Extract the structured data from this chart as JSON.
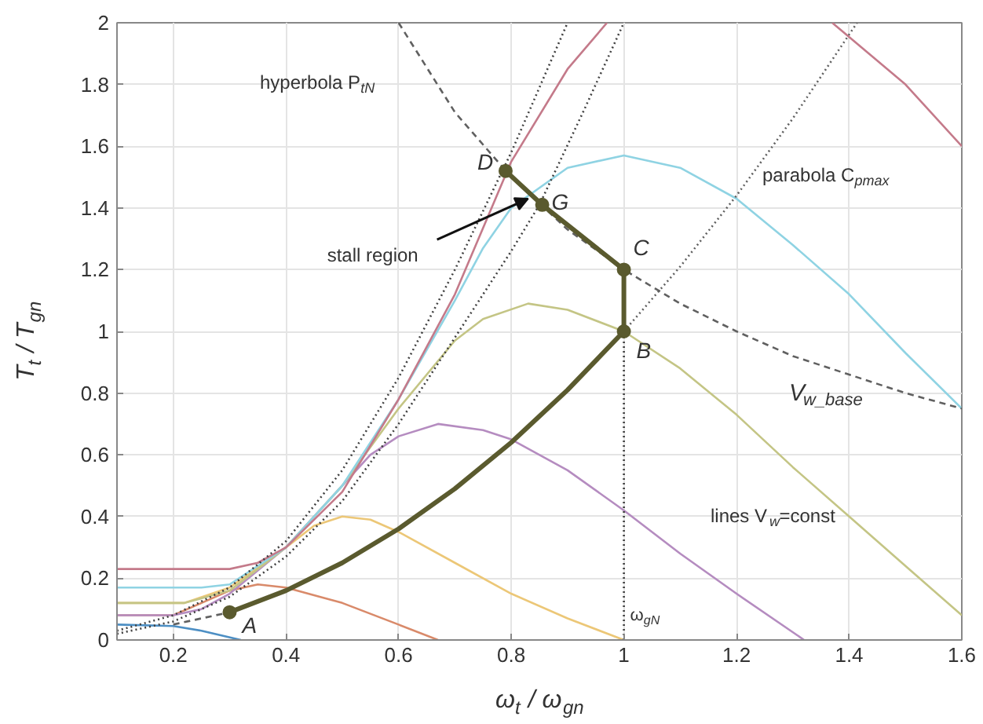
{
  "chart_data": {
    "type": "line",
    "xlabel": "ω$_{t}$ / ω$_{gn}$",
    "ylabel": "T$_{t}$ / T$_{gn}$",
    "xlim": [
      0.1,
      1.6
    ],
    "xticks": [
      0.2,
      0.4,
      0.6,
      0.8,
      1,
      1.2,
      1.4,
      1.6
    ],
    "ylim": [
      0,
      2
    ],
    "yticks": [
      0,
      0.2,
      0.4,
      0.6,
      0.8,
      1,
      1.2,
      1.4,
      1.6,
      1.8,
      2
    ],
    "grid": true,
    "line_style": "solid",
    "series": [
      {
        "color": "#4d8fc4",
        "x": [
          0.1,
          0.2,
          0.25,
          0.32
        ],
        "values": [
          0.05,
          0.045,
          0.03,
          0
        ]
      },
      {
        "color": "#d98a6a",
        "x": [
          0.1,
          0.2,
          0.25,
          0.3,
          0.35,
          0.4,
          0.5,
          0.6,
          0.67
        ],
        "values": [
          0.08,
          0.08,
          0.12,
          0.16,
          0.18,
          0.17,
          0.12,
          0.05,
          0
        ]
      },
      {
        "color": "#ecc777",
        "x": [
          0.1,
          0.22,
          0.3,
          0.4,
          0.45,
          0.5,
          0.55,
          0.6,
          0.7,
          0.8,
          0.9,
          1.0
        ],
        "values": [
          0.12,
          0.12,
          0.17,
          0.3,
          0.37,
          0.4,
          0.39,
          0.35,
          0.25,
          0.15,
          0.07,
          0
        ]
      },
      {
        "color": "#b58cc0",
        "x": [
          0.1,
          0.2,
          0.25,
          0.3,
          0.4,
          0.5,
          0.55,
          0.6,
          0.67,
          0.75,
          0.8,
          0.9,
          1.0,
          1.1,
          1.2,
          1.32
        ],
        "values": [
          0.08,
          0.08,
          0.1,
          0.15,
          0.3,
          0.5,
          0.6,
          0.66,
          0.7,
          0.68,
          0.65,
          0.55,
          0.42,
          0.28,
          0.15,
          0
        ]
      },
      {
        "color": "#c4c585",
        "x": [
          0.1,
          0.22,
          0.3,
          0.4,
          0.5,
          0.6,
          0.7,
          0.75,
          0.83,
          0.9,
          1.0,
          1.1,
          1.2,
          1.3,
          1.4,
          1.5,
          1.6
        ],
        "values": [
          0.12,
          0.12,
          0.16,
          0.3,
          0.5,
          0.75,
          0.97,
          1.04,
          1.09,
          1.07,
          1.0,
          0.88,
          0.73,
          0.56,
          0.4,
          0.24,
          0.08
        ]
      },
      {
        "color": "#8fd3e3",
        "x": [
          0.1,
          0.25,
          0.3,
          0.4,
          0.5,
          0.6,
          0.7,
          0.75,
          0.8,
          0.9,
          1.0,
          1.1,
          1.2,
          1.3,
          1.4,
          1.5,
          1.6
        ],
        "values": [
          0.17,
          0.17,
          0.18,
          0.3,
          0.5,
          0.78,
          1.1,
          1.27,
          1.4,
          1.53,
          1.57,
          1.53,
          1.43,
          1.28,
          1.12,
          0.93,
          0.75
        ]
      },
      {
        "color": "#c47a8a",
        "x": [
          0.1,
          0.3,
          0.35,
          0.4,
          0.5,
          0.6,
          0.7,
          0.8,
          0.9,
          0.97,
          1.2,
          1.37,
          1.5,
          1.6
        ],
        "values": [
          0.23,
          0.23,
          0.25,
          0.3,
          0.48,
          0.78,
          1.12,
          1.55,
          1.85,
          2.0,
          null,
          2.0,
          1.8,
          1.6
        ]
      },
      {
        "color": "#404040",
        "line_style": "dotted",
        "x": [
          0.1,
          0.2,
          0.3,
          0.4,
          0.5,
          0.6,
          0.7,
          0.8,
          0.9
        ],
        "values": [
          0.03,
          0.08,
          0.17,
          0.32,
          0.55,
          0.85,
          1.2,
          1.58,
          2.0
        ]
      },
      {
        "color": "#404040",
        "line_style": "dotted",
        "x": [
          0.1,
          0.2,
          0.3,
          0.4,
          0.5,
          0.6,
          0.7,
          0.8,
          0.85,
          0.93,
          1.0
        ],
        "values": [
          0.02,
          0.06,
          0.14,
          0.27,
          0.45,
          0.7,
          0.98,
          1.26,
          1.41,
          1.72,
          2.0
        ]
      },
      {
        "color": "#606060",
        "line_style": "dashed",
        "x": [
          0.6,
          0.7,
          0.8,
          0.9,
          1.0,
          1.1,
          1.2,
          1.3,
          1.4,
          1.5,
          1.6
        ],
        "values": [
          2.0,
          1.71,
          1.5,
          1.33,
          1.2,
          1.09,
          1.0,
          0.92,
          0.86,
          0.8,
          0.75
        ]
      },
      {
        "color": "#606060",
        "line_style": "dotted",
        "x": [
          1.0,
          1.1,
          1.2,
          1.3,
          1.414
        ],
        "values": [
          1.0,
          1.21,
          1.44,
          1.69,
          2.0
        ]
      },
      {
        "color": "#606060",
        "line_style": "dashed",
        "x": [
          0.2,
          0.3
        ],
        "values": [
          0.05,
          0.09
        ]
      },
      {
        "color": "#404040",
        "line_style": "dotted",
        "x": [
          1.0,
          1.0
        ],
        "values": [
          0,
          1.0
        ]
      },
      {
        "color": "#5a5a2e",
        "x": [
          0.3,
          0.4,
          0.5,
          0.6,
          0.7,
          0.8,
          0.9,
          1.0,
          1.0,
          0.855,
          0.79
        ],
        "values": [
          0.09,
          0.16,
          0.25,
          0.36,
          0.49,
          0.64,
          0.81,
          1.0,
          1.2,
          1.41,
          1.52
        ]
      },
      {
        "type": "scatter",
        "marker": "circle",
        "color": "#5a5a2e",
        "x": [
          0.3,
          1.0,
          1.0,
          0.855,
          0.79
        ],
        "values": [
          0.09,
          1.0,
          1.2,
          1.41,
          1.52
        ]
      }
    ],
    "annotations": [
      {
        "text": "A",
        "x": 0.3,
        "y": 0.09
      },
      {
        "text": "B",
        "x": 1.0,
        "y": 1.0
      },
      {
        "text": "C",
        "x": 1.0,
        "y": 1.2
      },
      {
        "text": "D",
        "x": 0.79,
        "y": 1.52
      },
      {
        "text": "G",
        "x": 0.855,
        "y": 1.41
      },
      {
        "text": "stall region",
        "x": 0.83,
        "y": 1.43
      },
      "hyperbola P$_{tN}$",
      "parabola C$_{pmax}$",
      "V$_{w_base}$",
      "lines V$_{w}$=const",
      {
        "text": "ω$_{gN}$",
        "x": 1.0,
        "y": 0.08
      }
    ]
  }
}
